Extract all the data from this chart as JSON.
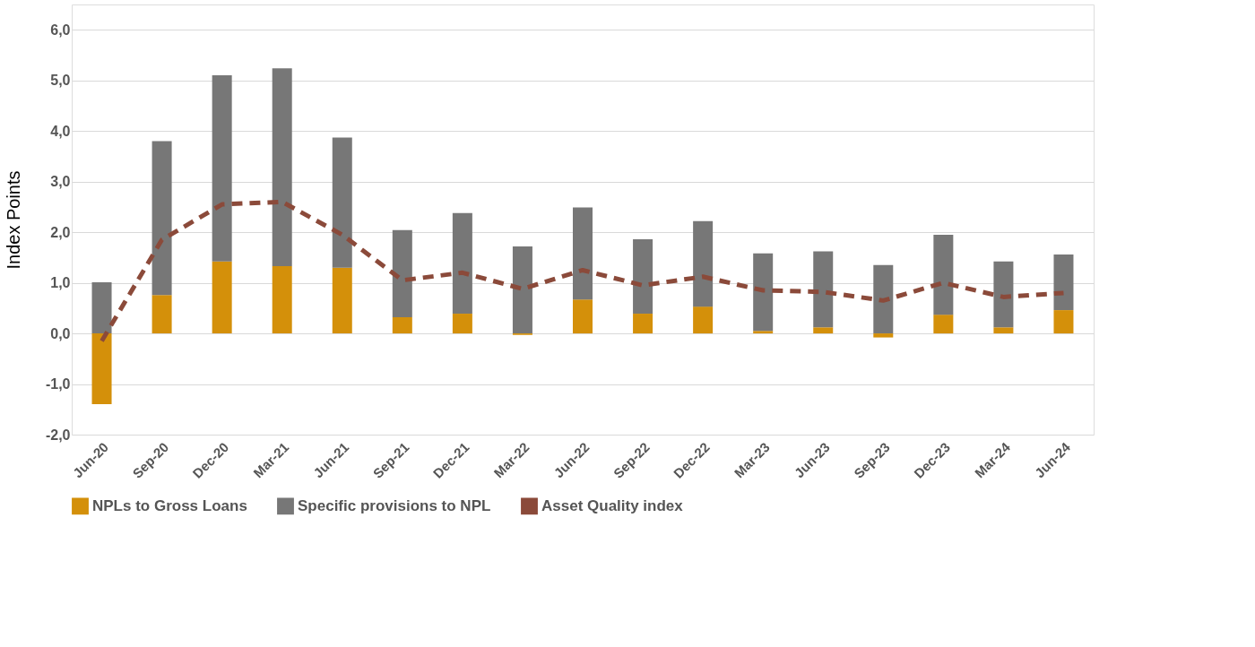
{
  "chart_data": {
    "type": "bar",
    "stacked": true,
    "ylabel": "Index Points",
    "categories": [
      "Jun-20",
      "Sep-20",
      "Dec-20",
      "Mar-21",
      "Jun-21",
      "Sep-21",
      "Dec-21",
      "Mar-22",
      "Jun-22",
      "Sep-22",
      "Dec-22",
      "Mar-23",
      "Jun-23",
      "Sep-23",
      "Dec-23",
      "Mar-24",
      "Jun-24"
    ],
    "series": [
      {
        "name": "NPLs to Gross Loans",
        "color": "#d4900a",
        "values": [
          -1.4,
          0.76,
          1.42,
          1.33,
          1.3,
          0.32,
          0.39,
          -0.03,
          0.67,
          0.39,
          0.53,
          0.05,
          0.12,
          -0.08,
          0.37,
          0.12,
          0.46
        ]
      },
      {
        "name": "Specific provisions to NPL",
        "color": "#777777",
        "values": [
          1.01,
          3.04,
          3.68,
          3.91,
          2.57,
          1.72,
          1.99,
          1.72,
          1.82,
          1.47,
          1.69,
          1.53,
          1.5,
          1.35,
          1.58,
          1.3,
          1.1
        ]
      },
      {
        "name": "Asset Quality index",
        "color": "#8b4a3a",
        "type": "line",
        "line_style": "dashed",
        "values": [
          -0.15,
          1.85,
          2.55,
          2.6,
          1.95,
          1.05,
          1.2,
          0.88,
          1.25,
          0.95,
          1.12,
          0.85,
          0.82,
          0.65,
          1.0,
          0.72,
          0.8
        ]
      }
    ],
    "ylim": [
      -2,
      6.5
    ],
    "yticks": [
      {
        "value": -2,
        "label": "-2,0"
      },
      {
        "value": -1,
        "label": "-1,0"
      },
      {
        "value": 0,
        "label": "0,0"
      },
      {
        "value": 1,
        "label": "1,0"
      },
      {
        "value": 2,
        "label": "2,0"
      },
      {
        "value": 3,
        "label": "3,0"
      },
      {
        "value": 4,
        "label": "4,0"
      },
      {
        "value": 5,
        "label": "5,0"
      },
      {
        "value": 6,
        "label": "6,0"
      }
    ],
    "grid": "y",
    "legend": "bottom"
  }
}
